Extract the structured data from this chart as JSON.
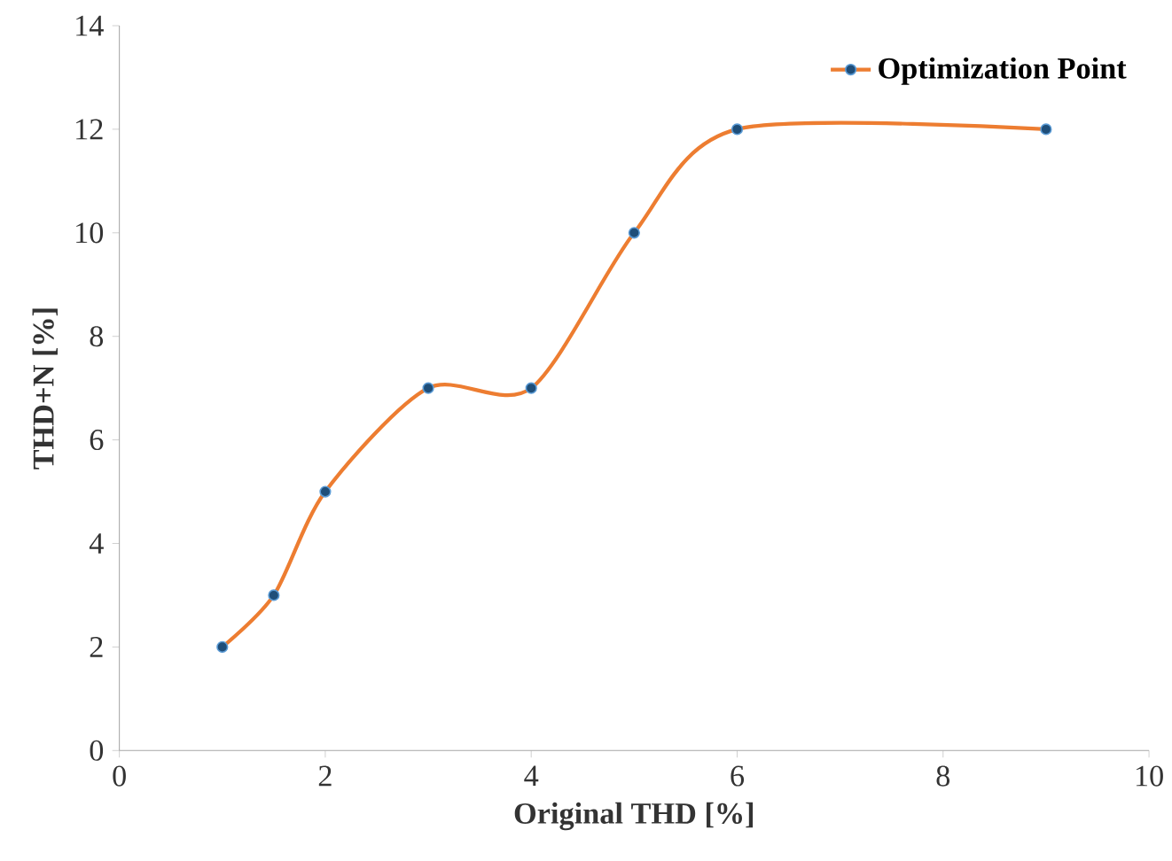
{
  "chart_data": {
    "type": "line",
    "xlabel": "Original THD [%]",
    "ylabel": "THD+N [%]",
    "x": [
      1,
      1.5,
      2,
      3,
      4,
      5,
      6,
      9
    ],
    "series": [
      {
        "name": "Optimization Point",
        "color": "#ed7d31",
        "values": [
          2,
          3,
          5,
          7,
          7,
          10,
          12,
          12
        ]
      }
    ],
    "xlim": [
      0,
      10
    ],
    "ylim": [
      0,
      14
    ],
    "xticks": [
      0,
      2,
      4,
      6,
      8,
      10
    ],
    "yticks": [
      0,
      2,
      4,
      6,
      8,
      10,
      12,
      14
    ],
    "grid": false,
    "legend": "top right",
    "marker": "circle",
    "line_style": "solid"
  }
}
